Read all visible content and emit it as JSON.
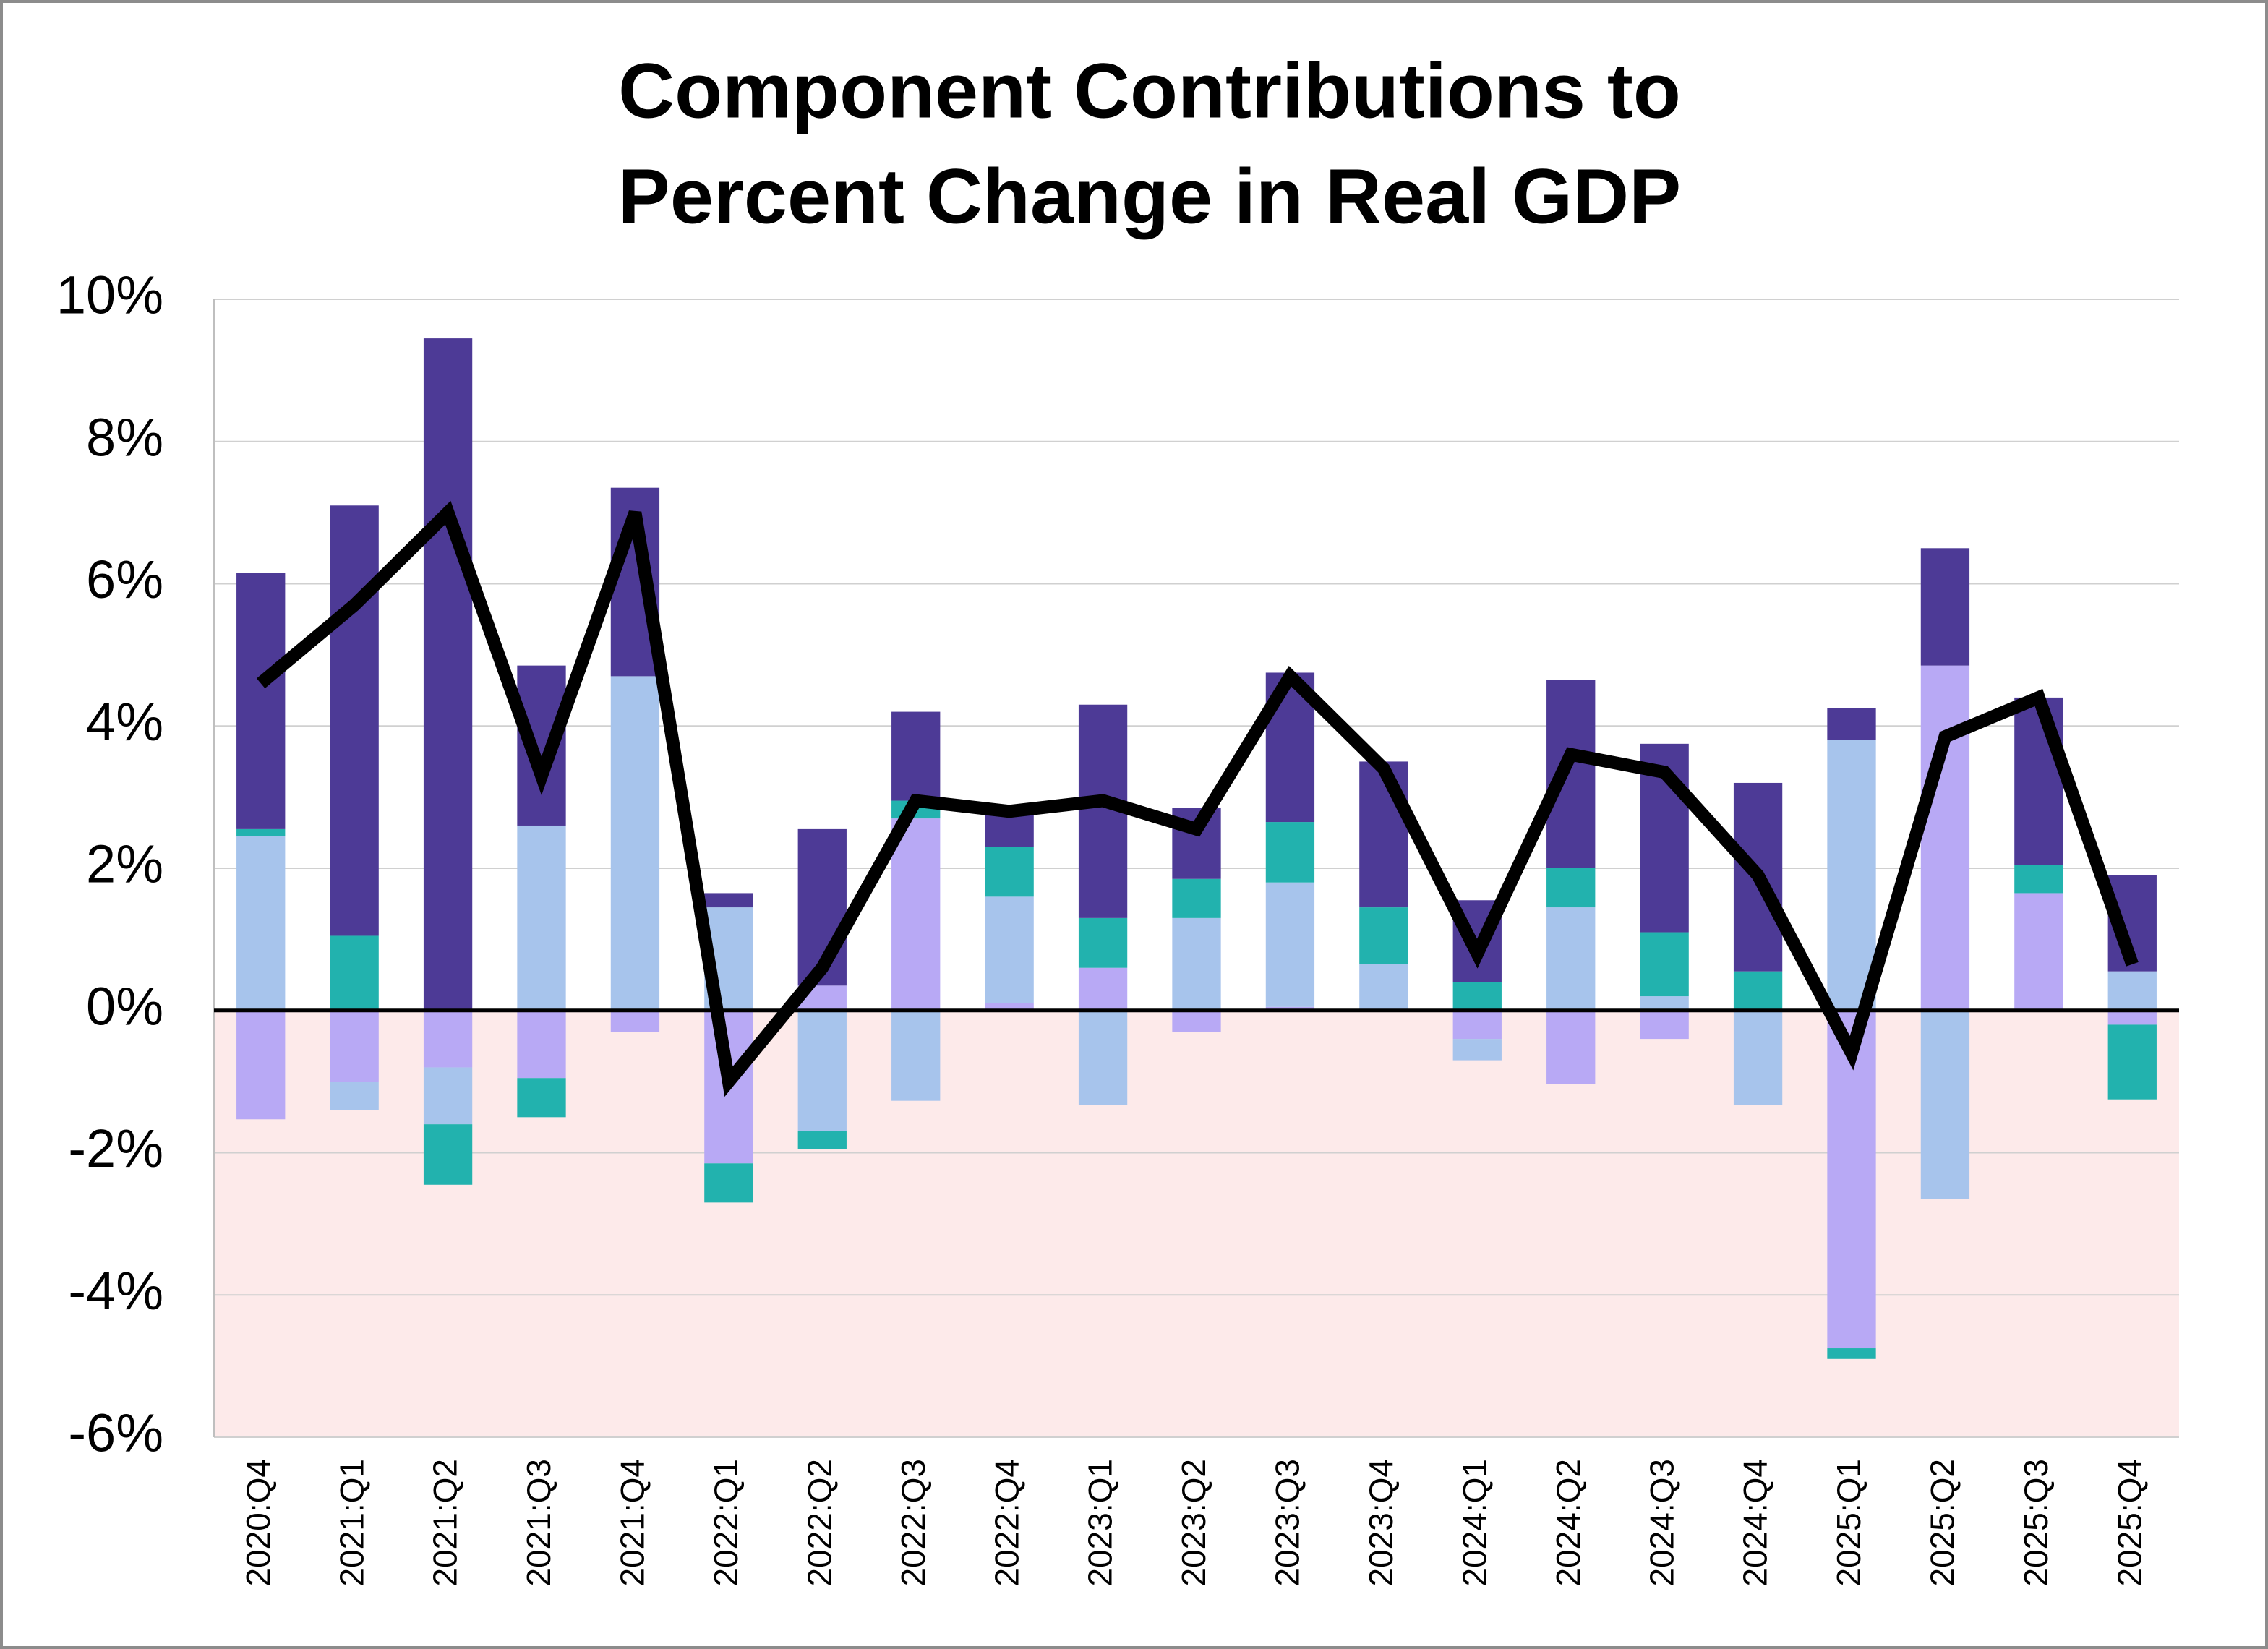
{
  "chart_data": {
    "type": "stacked-bar-line",
    "title": [
      "Component Contributions to",
      "Percent Change in Real GDP"
    ],
    "categories": [
      "2020:Q4",
      "2021:Q1",
      "2021:Q2",
      "2021:Q3",
      "2021:Q4",
      "2022:Q1",
      "2022:Q2",
      "2022:Q3",
      "2022:Q4",
      "2023:Q1",
      "2023:Q2",
      "2023:Q3",
      "2023:Q4",
      "2024:Q1",
      "2024:Q2",
      "2024:Q3",
      "2024:Q4",
      "2025:Q1",
      "2025:Q2",
      "2025:Q3",
      "2025:Q4"
    ],
    "series": [
      {
        "color": "#b8a9f5",
        "values": [
          -1.53,
          -1.0,
          -0.8,
          -0.95,
          -0.3,
          -2.15,
          0.35,
          2.7,
          0.1,
          0.6,
          -0.3,
          0.05,
          0,
          -0.4,
          -1.03,
          -0.4,
          0,
          -4.75,
          4.85,
          1.65,
          -0.2
        ]
      },
      {
        "color": "#a7c4ec",
        "values": [
          2.45,
          -0.4,
          -0.8,
          2.6,
          4.7,
          1.45,
          -1.7,
          -1.27,
          1.5,
          -1.33,
          1.3,
          1.75,
          0.65,
          -0.3,
          1.45,
          0.2,
          -1.33,
          3.8,
          -2.65,
          0,
          0.55
        ]
      },
      {
        "color": "#22b2ae",
        "values": [
          0.1,
          1.05,
          -0.85,
          -0.55,
          0,
          -0.55,
          -0.25,
          0.25,
          0.7,
          0.7,
          0.55,
          0.85,
          0.8,
          0.4,
          0.55,
          0.9,
          0.55,
          -0.15,
          0,
          0.4,
          -1.05
        ]
      },
      {
        "color": "#4d3a96",
        "values": [
          3.6,
          6.05,
          9.45,
          2.25,
          2.65,
          0.2,
          2.2,
          1.25,
          0.55,
          3.0,
          1.0,
          2.1,
          2.05,
          1.15,
          2.65,
          2.65,
          2.65,
          0.45,
          1.65,
          2.35,
          1.35
        ]
      },
      {
        "type": "line",
        "color": "#000000",
        "values": [
          4.6,
          5.7,
          7.0,
          3.3,
          7.0,
          -1.0,
          0.6,
          2.95,
          2.8,
          2.95,
          2.55,
          4.7,
          3.4,
          0.8,
          3.6,
          3.35,
          1.9,
          -0.6,
          3.85,
          4.4,
          0.65
        ]
      }
    ],
    "ylim": [
      -6,
      10
    ],
    "yticks": [
      {
        "value": -6,
        "label": "-6%"
      },
      {
        "value": -4,
        "label": "-4%"
      },
      {
        "value": -2,
        "label": "-2%"
      },
      {
        "value": 0,
        "label": "0%"
      },
      {
        "value": 2,
        "label": "2%"
      },
      {
        "value": 4,
        "label": "4%"
      },
      {
        "value": 6,
        "label": "6%"
      },
      {
        "value": 8,
        "label": "8%"
      },
      {
        "value": 10,
        "label": "10%"
      }
    ],
    "grid": true,
    "negative_shade": "#fdeaea",
    "negative_tick_color": "#ff0000"
  }
}
